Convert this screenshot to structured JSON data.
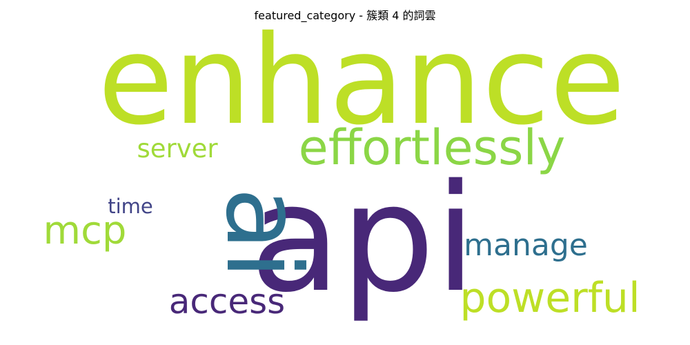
{
  "chart_data": {
    "type": "wordcloud",
    "title": "featured_category - 簇類 4 的詞雲",
    "words": [
      {
        "text": "enhance",
        "rank": 1,
        "color": "#bddf26"
      },
      {
        "text": "api",
        "rank": 2,
        "color": "#482878"
      },
      {
        "text": "ai",
        "rank": 3,
        "color": "#2e6f8e",
        "orientation": "vertical"
      },
      {
        "text": "effortlessly",
        "rank": 4,
        "color": "#8bd646"
      },
      {
        "text": "powerful",
        "rank": 5,
        "color": "#bddf26"
      },
      {
        "text": "access",
        "rank": 6,
        "color": "#482878"
      },
      {
        "text": "manage",
        "rank": 7,
        "color": "#2e6f8e"
      },
      {
        "text": "mcp",
        "rank": 8,
        "color": "#a0da39"
      },
      {
        "text": "server",
        "rank": 9,
        "color": "#a0da39"
      },
      {
        "text": "time",
        "rank": 10,
        "color": "#414487"
      }
    ]
  }
}
